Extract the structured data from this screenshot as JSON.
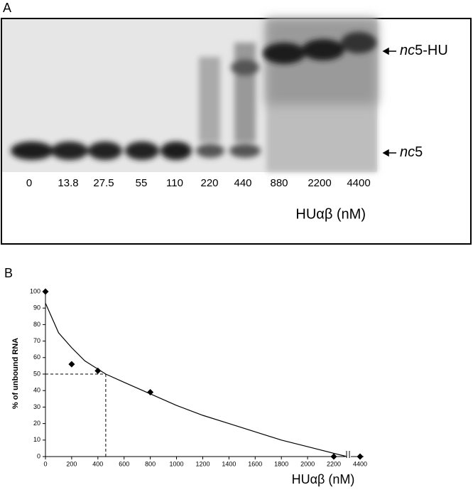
{
  "panel_a": {
    "label": "A",
    "lanes": [
      "0",
      "13.8",
      "27.5",
      "55",
      "110",
      "220",
      "440",
      "880",
      "2200",
      "4400"
    ],
    "band_labels": [
      {
        "italic": "nc",
        "plain": "5-HU"
      },
      {
        "italic": "nc",
        "plain": "5"
      }
    ],
    "axis_label": "HUαβ (nM)"
  },
  "chart_data": {
    "type": "scatter",
    "label": "B",
    "xlabel": "HUαβ (nM)",
    "ylabel": "% of unbound RNA",
    "x": [
      0,
      200,
      400,
      800,
      2200,
      4400
    ],
    "values": [
      100,
      56,
      52,
      39,
      0,
      0
    ],
    "color": "#000000",
    "fit": {
      "x": [
        0,
        100,
        200,
        300,
        400,
        460,
        600,
        800,
        1000,
        1200,
        1400,
        1600,
        1800,
        2000,
        2200,
        2300
      ],
      "values": [
        93,
        75,
        66,
        58,
        53,
        50,
        45,
        38,
        31,
        25,
        20,
        15,
        10,
        6,
        2,
        0
      ]
    },
    "reference": {
      "x": 460,
      "y": 50
    },
    "xlim": [
      0,
      4400
    ],
    "ylim": [
      0,
      100
    ],
    "xticks": [
      0,
      200,
      400,
      600,
      800,
      1000,
      1200,
      1400,
      1600,
      1800,
      2000,
      2200,
      4400
    ],
    "yticks": [
      0,
      10,
      20,
      30,
      40,
      50,
      60,
      70,
      80,
      90,
      100
    ],
    "grid": false
  }
}
